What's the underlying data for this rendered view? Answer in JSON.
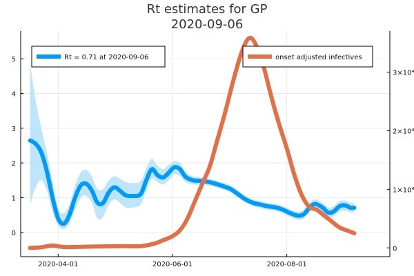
{
  "chart_data": {
    "type": "line",
    "title": [
      "Rt estimates for GP",
      "2020-09-06"
    ],
    "colors": {
      "rt": "#009af9",
      "band": "#a9dcfb",
      "infectives": "#e26f46"
    },
    "x_axis": {
      "ticks": [
        {
          "date": "2020-04-01",
          "label": "2020-04-01"
        },
        {
          "date": "2020-06-01",
          "label": "2020-06-01"
        },
        {
          "date": "2020-08-01",
          "label": "2020-08-01"
        }
      ],
      "range": [
        "2020-03-12",
        "2020-09-25"
      ]
    },
    "y_left": {
      "ticks": [
        0,
        1,
        2,
        3,
        4,
        5
      ],
      "tick_labels": [
        "0",
        "1",
        "2",
        "3",
        "4",
        "5"
      ],
      "range": [
        -0.7,
        5.8
      ]
    },
    "y_right": {
      "ticks": [
        0,
        10000,
        20000,
        30000
      ],
      "tick_labels": [
        "0",
        "1×10⁴",
        "2×10⁴",
        "3×10⁴"
      ],
      "range": [
        -1500,
        37000
      ]
    },
    "grid": true,
    "legend_left": {
      "placement": "top-left",
      "label": "Rt = 0.71  at 2020-09-06"
    },
    "legend_right": {
      "placement": "top-right",
      "label": "onset adjusted infectives"
    },
    "series": [
      {
        "name": "Rt = 0.71  at 2020-09-06",
        "axis": "left",
        "points": [
          [
            "2020-03-17",
            2.65
          ],
          [
            "2020-03-20",
            2.55
          ],
          [
            "2020-03-23",
            2.3
          ],
          [
            "2020-03-26",
            1.75
          ],
          [
            "2020-03-29",
            1.0
          ],
          [
            "2020-04-01",
            0.4
          ],
          [
            "2020-04-04",
            0.25
          ],
          [
            "2020-04-07",
            0.5
          ],
          [
            "2020-04-10",
            1.0
          ],
          [
            "2020-04-13",
            1.35
          ],
          [
            "2020-04-16",
            1.4
          ],
          [
            "2020-04-19",
            1.2
          ],
          [
            "2020-04-22",
            0.85
          ],
          [
            "2020-04-25",
            0.85
          ],
          [
            "2020-04-28",
            1.15
          ],
          [
            "2020-05-01",
            1.3
          ],
          [
            "2020-05-04",
            1.2
          ],
          [
            "2020-05-07",
            1.07
          ],
          [
            "2020-05-11",
            1.05
          ],
          [
            "2020-05-15",
            1.1
          ],
          [
            "2020-05-18",
            1.5
          ],
          [
            "2020-05-21",
            1.82
          ],
          [
            "2020-05-24",
            1.65
          ],
          [
            "2020-05-27",
            1.58
          ],
          [
            "2020-05-30",
            1.72
          ],
          [
            "2020-06-02",
            1.88
          ],
          [
            "2020-06-05",
            1.82
          ],
          [
            "2020-06-08",
            1.6
          ],
          [
            "2020-06-12",
            1.5
          ],
          [
            "2020-06-17",
            1.48
          ],
          [
            "2020-06-22",
            1.43
          ],
          [
            "2020-06-27",
            1.35
          ],
          [
            "2020-07-02",
            1.25
          ],
          [
            "2020-07-06",
            1.1
          ],
          [
            "2020-07-10",
            0.95
          ],
          [
            "2020-07-14",
            0.85
          ],
          [
            "2020-07-18",
            0.8
          ],
          [
            "2020-07-22",
            0.75
          ],
          [
            "2020-07-26",
            0.72
          ],
          [
            "2020-07-30",
            0.65
          ],
          [
            "2020-08-03",
            0.55
          ],
          [
            "2020-08-07",
            0.48
          ],
          [
            "2020-08-10",
            0.52
          ],
          [
            "2020-08-13",
            0.7
          ],
          [
            "2020-08-16",
            0.82
          ],
          [
            "2020-08-20",
            0.72
          ],
          [
            "2020-08-23",
            0.57
          ],
          [
            "2020-08-26",
            0.6
          ],
          [
            "2020-08-29",
            0.75
          ],
          [
            "2020-09-01",
            0.78
          ],
          [
            "2020-09-04",
            0.71
          ],
          [
            "2020-09-06",
            0.71
          ]
        ],
        "band": [
          [
            "2020-03-17",
            0.8,
            4.9
          ],
          [
            "2020-03-20",
            1.3,
            3.8
          ],
          [
            "2020-03-23",
            1.5,
            3.0
          ],
          [
            "2020-03-26",
            1.2,
            2.3
          ],
          [
            "2020-03-29",
            0.6,
            1.45
          ],
          [
            "2020-04-01",
            0.2,
            0.7
          ],
          [
            "2020-04-04",
            0.1,
            0.55
          ],
          [
            "2020-04-07",
            0.25,
            0.8
          ],
          [
            "2020-04-10",
            0.65,
            1.35
          ],
          [
            "2020-04-13",
            1.0,
            1.72
          ],
          [
            "2020-04-16",
            1.05,
            1.8
          ],
          [
            "2020-04-19",
            0.85,
            1.6
          ],
          [
            "2020-04-22",
            0.4,
            1.25
          ],
          [
            "2020-04-25",
            0.45,
            1.25
          ],
          [
            "2020-04-28",
            0.8,
            1.5
          ],
          [
            "2020-05-01",
            0.95,
            1.62
          ],
          [
            "2020-05-04",
            0.85,
            1.55
          ],
          [
            "2020-05-07",
            0.72,
            1.45
          ],
          [
            "2020-05-11",
            0.72,
            1.42
          ],
          [
            "2020-05-15",
            0.8,
            1.48
          ],
          [
            "2020-05-18",
            1.2,
            1.85
          ],
          [
            "2020-05-21",
            1.55,
            2.12
          ],
          [
            "2020-05-24",
            1.45,
            1.92
          ],
          [
            "2020-05-27",
            1.38,
            1.82
          ],
          [
            "2020-05-30",
            1.5,
            1.95
          ],
          [
            "2020-06-02",
            1.68,
            2.05
          ],
          [
            "2020-06-05",
            1.62,
            2.0
          ],
          [
            "2020-06-08",
            1.45,
            1.75
          ],
          [
            "2020-06-12",
            1.38,
            1.62
          ],
          [
            "2020-06-17",
            1.38,
            1.58
          ],
          [
            "2020-06-22",
            1.33,
            1.53
          ],
          [
            "2020-06-27",
            1.25,
            1.45
          ],
          [
            "2020-07-02",
            1.15,
            1.35
          ],
          [
            "2020-07-06",
            1.0,
            1.2
          ],
          [
            "2020-07-10",
            0.86,
            1.05
          ],
          [
            "2020-07-14",
            0.76,
            0.95
          ],
          [
            "2020-07-18",
            0.7,
            0.9
          ],
          [
            "2020-07-22",
            0.65,
            0.85
          ],
          [
            "2020-07-26",
            0.62,
            0.82
          ],
          [
            "2020-07-30",
            0.55,
            0.76
          ],
          [
            "2020-08-03",
            0.44,
            0.66
          ],
          [
            "2020-08-07",
            0.36,
            0.6
          ],
          [
            "2020-08-10",
            0.4,
            0.66
          ],
          [
            "2020-08-13",
            0.58,
            0.85
          ],
          [
            "2020-08-16",
            0.7,
            0.95
          ],
          [
            "2020-08-20",
            0.6,
            0.85
          ],
          [
            "2020-08-23",
            0.44,
            0.72
          ],
          [
            "2020-08-26",
            0.46,
            0.75
          ],
          [
            "2020-08-29",
            0.6,
            0.9
          ],
          [
            "2020-09-01",
            0.63,
            0.92
          ],
          [
            "2020-09-04",
            0.58,
            0.85
          ],
          [
            "2020-09-06",
            0.58,
            0.85
          ]
        ]
      },
      {
        "name": "onset adjusted infectives",
        "axis": "right",
        "points": [
          [
            "2020-03-17",
            0
          ],
          [
            "2020-03-23",
            100
          ],
          [
            "2020-03-29",
            400
          ],
          [
            "2020-04-04",
            150
          ],
          [
            "2020-04-15",
            200
          ],
          [
            "2020-04-25",
            250
          ],
          [
            "2020-05-05",
            300
          ],
          [
            "2020-05-15",
            300
          ],
          [
            "2020-05-22",
            700
          ],
          [
            "2020-05-27",
            1300
          ],
          [
            "2020-06-01",
            2000
          ],
          [
            "2020-06-05",
            3000
          ],
          [
            "2020-06-09",
            5000
          ],
          [
            "2020-06-13",
            8000
          ],
          [
            "2020-06-17",
            11000
          ],
          [
            "2020-06-21",
            14000
          ],
          [
            "2020-06-25",
            18500
          ],
          [
            "2020-06-29",
            23000
          ],
          [
            "2020-07-03",
            28000
          ],
          [
            "2020-07-07",
            32500
          ],
          [
            "2020-07-10",
            35000
          ],
          [
            "2020-07-12",
            35800
          ],
          [
            "2020-07-14",
            35500
          ],
          [
            "2020-07-17",
            33500
          ],
          [
            "2020-07-20",
            30500
          ],
          [
            "2020-07-24",
            25500
          ],
          [
            "2020-07-28",
            21000
          ],
          [
            "2020-08-01",
            17000
          ],
          [
            "2020-08-05",
            12500
          ],
          [
            "2020-08-09",
            9000
          ],
          [
            "2020-08-13",
            7000
          ],
          [
            "2020-08-17",
            6500
          ],
          [
            "2020-08-21",
            5500
          ],
          [
            "2020-08-25",
            4500
          ],
          [
            "2020-08-29",
            3500
          ],
          [
            "2020-09-02",
            3000
          ],
          [
            "2020-09-06",
            2500
          ]
        ]
      }
    ]
  }
}
